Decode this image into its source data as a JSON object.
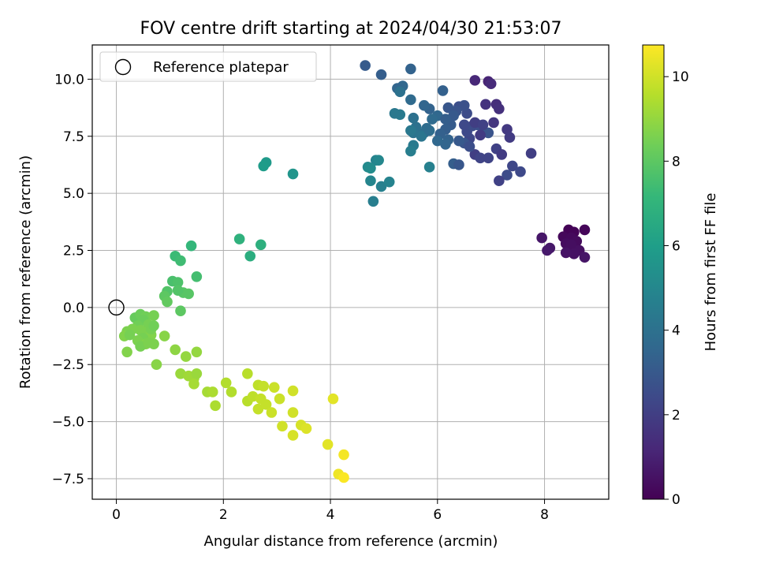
{
  "chart_data": {
    "type": "scatter",
    "title": "FOV centre drift starting at 2024/04/30 21:53:07",
    "xlabel": "Angular distance from reference (arcmin)",
    "ylabel": "Rotation from reference (arcmin)",
    "xlim": [
      -0.45,
      9.2
    ],
    "ylim": [
      -8.4,
      11.5
    ],
    "xticks": [
      0,
      2,
      4,
      6,
      8
    ],
    "xtick_labels": [
      "0",
      "2",
      "4",
      "6",
      "8"
    ],
    "yticks": [
      -7.5,
      -5.0,
      -2.5,
      0.0,
      2.5,
      5.0,
      7.5,
      10.0
    ],
    "ytick_labels": [
      "−7.5",
      "−5.0",
      "−2.5",
      "0.0",
      "2.5",
      "5.0",
      "7.5",
      "10.0"
    ],
    "grid": true,
    "legend": {
      "position": "top-left",
      "entries": [
        "Reference platepar"
      ]
    },
    "reference_point": {
      "x": 0,
      "y": 0,
      "label": "Reference platepar"
    },
    "colorbar": {
      "label": "Hours from first FF file",
      "min": 0,
      "max": 10.75,
      "ticks": [
        0,
        2,
        4,
        6,
        8,
        10
      ],
      "tick_labels": [
        "0",
        "2",
        "4",
        "6",
        "8",
        "10"
      ],
      "colormap": "viridis",
      "stops": [
        "#440154",
        "#482878",
        "#3e4989",
        "#31688e",
        "#26828e",
        "#1f9e89",
        "#35b779",
        "#6ece58",
        "#b5de2b",
        "#fde725"
      ]
    },
    "series": [
      {
        "values": [
          {
            "x": 8.45,
            "y": 3.4,
            "c": 0.05
          },
          {
            "x": 8.55,
            "y": 3.3,
            "c": 0.1
          },
          {
            "x": 8.75,
            "y": 3.4,
            "c": 0.15
          },
          {
            "x": 8.35,
            "y": 3.1,
            "c": 0.2
          },
          {
            "x": 8.5,
            "y": 3.05,
            "c": 0.25
          },
          {
            "x": 8.6,
            "y": 2.9,
            "c": 0.3
          },
          {
            "x": 8.4,
            "y": 2.8,
            "c": 0.35
          },
          {
            "x": 8.5,
            "y": 2.75,
            "c": 0.4
          },
          {
            "x": 8.65,
            "y": 2.5,
            "c": 0.45
          },
          {
            "x": 8.55,
            "y": 2.35,
            "c": 0.5
          },
          {
            "x": 8.4,
            "y": 2.4,
            "c": 0.55
          },
          {
            "x": 8.75,
            "y": 2.2,
            "c": 0.6
          },
          {
            "x": 7.95,
            "y": 3.05,
            "c": 0.65
          },
          {
            "x": 8.1,
            "y": 2.6,
            "c": 0.7
          },
          {
            "x": 8.05,
            "y": 2.5,
            "c": 0.75
          },
          {
            "x": 6.95,
            "y": 9.9,
            "c": 1.1
          },
          {
            "x": 6.7,
            "y": 9.95,
            "c": 1.2
          },
          {
            "x": 7.0,
            "y": 9.8,
            "c": 1.3
          },
          {
            "x": 7.1,
            "y": 8.9,
            "c": 1.4
          },
          {
            "x": 7.15,
            "y": 8.7,
            "c": 1.5
          },
          {
            "x": 6.9,
            "y": 8.9,
            "c": 1.6
          },
          {
            "x": 7.05,
            "y": 8.1,
            "c": 1.7
          },
          {
            "x": 7.3,
            "y": 7.8,
            "c": 1.8
          },
          {
            "x": 7.35,
            "y": 7.45,
            "c": 1.9
          },
          {
            "x": 7.75,
            "y": 6.75,
            "c": 2.0
          },
          {
            "x": 7.1,
            "y": 6.95,
            "c": 2.1
          },
          {
            "x": 7.2,
            "y": 6.7,
            "c": 1.9
          },
          {
            "x": 6.95,
            "y": 6.55,
            "c": 2.2
          },
          {
            "x": 7.4,
            "y": 6.2,
            "c": 2.3
          },
          {
            "x": 7.55,
            "y": 5.95,
            "c": 2.4
          },
          {
            "x": 7.3,
            "y": 5.8,
            "c": 2.5
          },
          {
            "x": 7.15,
            "y": 5.55,
            "c": 2.1
          },
          {
            "x": 6.7,
            "y": 6.7,
            "c": 2.0
          },
          {
            "x": 6.8,
            "y": 6.55,
            "c": 2.2
          },
          {
            "x": 6.6,
            "y": 7.4,
            "c": 2.3
          },
          {
            "x": 6.55,
            "y": 7.7,
            "c": 2.4
          },
          {
            "x": 6.65,
            "y": 7.95,
            "c": 2.5
          },
          {
            "x": 6.75,
            "y": 8.0,
            "c": 2.6
          },
          {
            "x": 6.85,
            "y": 7.7,
            "c": 2.7
          },
          {
            "x": 6.95,
            "y": 7.65,
            "c": 2.8
          },
          {
            "x": 6.8,
            "y": 7.55,
            "c": 1.9
          },
          {
            "x": 6.7,
            "y": 8.1,
            "c": 2.0
          },
          {
            "x": 6.85,
            "y": 8.0,
            "c": 2.1
          },
          {
            "x": 6.5,
            "y": 8.0,
            "c": 2.4
          },
          {
            "x": 6.55,
            "y": 8.5,
            "c": 2.5
          },
          {
            "x": 6.4,
            "y": 8.8,
            "c": 2.6
          },
          {
            "x": 6.5,
            "y": 8.85,
            "c": 2.7
          },
          {
            "x": 6.35,
            "y": 8.6,
            "c": 2.8
          },
          {
            "x": 6.2,
            "y": 8.75,
            "c": 2.9
          },
          {
            "x": 6.3,
            "y": 8.4,
            "c": 3.0
          },
          {
            "x": 6.25,
            "y": 8.0,
            "c": 3.1
          },
          {
            "x": 6.15,
            "y": 7.8,
            "c": 3.2
          },
          {
            "x": 6.05,
            "y": 7.6,
            "c": 3.3
          },
          {
            "x": 6.2,
            "y": 7.35,
            "c": 3.4
          },
          {
            "x": 6.15,
            "y": 7.15,
            "c": 3.5
          },
          {
            "x": 6.0,
            "y": 7.3,
            "c": 3.6
          },
          {
            "x": 6.5,
            "y": 7.2,
            "c": 2.8
          },
          {
            "x": 6.6,
            "y": 7.05,
            "c": 2.6
          },
          {
            "x": 6.4,
            "y": 7.3,
            "c": 3.0
          },
          {
            "x": 6.3,
            "y": 6.3,
            "c": 3.2
          },
          {
            "x": 6.4,
            "y": 6.25,
            "c": 2.9
          },
          {
            "x": 6.1,
            "y": 9.5,
            "c": 3.3
          },
          {
            "x": 5.85,
            "y": 8.7,
            "c": 3.4
          },
          {
            "x": 5.75,
            "y": 8.85,
            "c": 3.5
          },
          {
            "x": 6.0,
            "y": 8.4,
            "c": 3.6
          },
          {
            "x": 6.15,
            "y": 8.25,
            "c": 3.2
          },
          {
            "x": 5.9,
            "y": 8.25,
            "c": 3.7
          },
          {
            "x": 5.8,
            "y": 7.85,
            "c": 3.8
          },
          {
            "x": 5.75,
            "y": 7.65,
            "c": 3.9
          },
          {
            "x": 5.6,
            "y": 7.9,
            "c": 4.0
          },
          {
            "x": 5.55,
            "y": 7.65,
            "c": 4.1
          },
          {
            "x": 5.7,
            "y": 7.5,
            "c": 4.2
          },
          {
            "x": 5.85,
            "y": 7.75,
            "c": 3.8
          },
          {
            "x": 5.5,
            "y": 7.75,
            "c": 4.3
          },
          {
            "x": 5.55,
            "y": 8.3,
            "c": 4.0
          },
          {
            "x": 5.5,
            "y": 9.1,
            "c": 3.7
          },
          {
            "x": 5.35,
            "y": 9.7,
            "c": 3.6
          },
          {
            "x": 5.25,
            "y": 9.6,
            "c": 3.5
          },
          {
            "x": 5.3,
            "y": 9.45,
            "c": 4.0
          },
          {
            "x": 5.5,
            "y": 10.45,
            "c": 3.4
          },
          {
            "x": 4.95,
            "y": 10.2,
            "c": 3.2
          },
          {
            "x": 4.65,
            "y": 10.6,
            "c": 3.1
          },
          {
            "x": 5.55,
            "y": 7.1,
            "c": 4.4
          },
          {
            "x": 5.5,
            "y": 6.85,
            "c": 4.6
          },
          {
            "x": 5.85,
            "y": 6.15,
            "c": 4.7
          },
          {
            "x": 5.3,
            "y": 8.45,
            "c": 4.4
          },
          {
            "x": 5.2,
            "y": 8.5,
            "c": 4.3
          },
          {
            "x": 4.85,
            "y": 6.45,
            "c": 4.8
          },
          {
            "x": 4.9,
            "y": 6.45,
            "c": 5.0
          },
          {
            "x": 4.7,
            "y": 6.15,
            "c": 5.1
          },
          {
            "x": 4.75,
            "y": 6.1,
            "c": 5.2
          },
          {
            "x": 4.75,
            "y": 5.55,
            "c": 4.9
          },
          {
            "x": 4.95,
            "y": 5.3,
            "c": 4.7
          },
          {
            "x": 5.1,
            "y": 5.5,
            "c": 4.8
          },
          {
            "x": 4.8,
            "y": 4.65,
            "c": 4.6
          },
          {
            "x": 2.8,
            "y": 6.35,
            "c": 5.8
          },
          {
            "x": 2.75,
            "y": 6.2,
            "c": 5.9
          },
          {
            "x": 3.3,
            "y": 5.85,
            "c": 5.6
          },
          {
            "x": 2.3,
            "y": 3.0,
            "c": 6.9
          },
          {
            "x": 2.7,
            "y": 2.75,
            "c": 6.8
          },
          {
            "x": 2.5,
            "y": 2.25,
            "c": 6.7
          },
          {
            "x": 1.4,
            "y": 2.7,
            "c": 7.1
          },
          {
            "x": 1.1,
            "y": 2.25,
            "c": 7.3
          },
          {
            "x": 1.2,
            "y": 2.05,
            "c": 7.4
          },
          {
            "x": 1.5,
            "y": 1.35,
            "c": 7.5
          },
          {
            "x": 1.05,
            "y": 1.15,
            "c": 7.6
          },
          {
            "x": 1.15,
            "y": 1.1,
            "c": 7.7
          },
          {
            "x": 0.95,
            "y": 0.7,
            "c": 7.8
          },
          {
            "x": 1.25,
            "y": 0.65,
            "c": 7.9
          },
          {
            "x": 1.35,
            "y": 0.6,
            "c": 7.9
          },
          {
            "x": 0.9,
            "y": 0.5,
            "c": 8.0
          },
          {
            "x": 0.95,
            "y": 0.25,
            "c": 8.1
          },
          {
            "x": 1.2,
            "y": -0.15,
            "c": 8.0
          },
          {
            "x": 1.15,
            "y": 0.75,
            "c": 7.8
          },
          {
            "x": 0.35,
            "y": -0.45,
            "c": 8.2
          },
          {
            "x": 0.45,
            "y": -0.3,
            "c": 8.3
          },
          {
            "x": 0.55,
            "y": -0.4,
            "c": 8.4
          },
          {
            "x": 0.7,
            "y": -0.35,
            "c": 8.5
          },
          {
            "x": 0.5,
            "y": -0.55,
            "c": 8.3
          },
          {
            "x": 0.6,
            "y": -0.75,
            "c": 8.5
          },
          {
            "x": 0.4,
            "y": -0.8,
            "c": 8.4
          },
          {
            "x": 0.3,
            "y": -0.95,
            "c": 8.6
          },
          {
            "x": 0.2,
            "y": -1.05,
            "c": 8.6
          },
          {
            "x": 0.15,
            "y": -1.25,
            "c": 8.7
          },
          {
            "x": 0.25,
            "y": -1.2,
            "c": 8.5
          },
          {
            "x": 0.45,
            "y": -1.0,
            "c": 8.6
          },
          {
            "x": 0.55,
            "y": -1.1,
            "c": 8.6
          },
          {
            "x": 0.65,
            "y": -1.2,
            "c": 8.7
          },
          {
            "x": 0.5,
            "y": -1.35,
            "c": 8.5
          },
          {
            "x": 0.4,
            "y": -1.45,
            "c": 8.6
          },
          {
            "x": 0.55,
            "y": -1.6,
            "c": 8.7
          },
          {
            "x": 0.7,
            "y": -1.6,
            "c": 8.6
          },
          {
            "x": 0.45,
            "y": -1.7,
            "c": 8.5
          },
          {
            "x": 0.6,
            "y": -1.55,
            "c": 8.6
          },
          {
            "x": 0.65,
            "y": -0.95,
            "c": 8.5
          },
          {
            "x": 0.7,
            "y": -0.8,
            "c": 8.4
          },
          {
            "x": 0.2,
            "y": -1.95,
            "c": 8.7
          },
          {
            "x": 0.75,
            "y": -2.5,
            "c": 8.8
          },
          {
            "x": 0.9,
            "y": -1.25,
            "c": 8.8
          },
          {
            "x": 1.1,
            "y": -1.85,
            "c": 8.9
          },
          {
            "x": 1.3,
            "y": -2.15,
            "c": 9.0
          },
          {
            "x": 1.5,
            "y": -1.95,
            "c": 9.0
          },
          {
            "x": 1.2,
            "y": -2.9,
            "c": 9.1
          },
          {
            "x": 1.35,
            "y": -3.0,
            "c": 9.2
          },
          {
            "x": 1.45,
            "y": -3.1,
            "c": 9.2
          },
          {
            "x": 1.45,
            "y": -3.35,
            "c": 9.3
          },
          {
            "x": 1.5,
            "y": -2.9,
            "c": 9.1
          },
          {
            "x": 1.7,
            "y": -3.7,
            "c": 9.3
          },
          {
            "x": 1.8,
            "y": -3.7,
            "c": 9.4
          },
          {
            "x": 1.85,
            "y": -4.3,
            "c": 9.4
          },
          {
            "x": 2.05,
            "y": -3.3,
            "c": 9.5
          },
          {
            "x": 2.15,
            "y": -3.7,
            "c": 9.5
          },
          {
            "x": 2.45,
            "y": -2.9,
            "c": 9.6
          },
          {
            "x": 2.45,
            "y": -4.1,
            "c": 9.6
          },
          {
            "x": 2.55,
            "y": -3.9,
            "c": 9.7
          },
          {
            "x": 2.65,
            "y": -3.4,
            "c": 9.7
          },
          {
            "x": 2.7,
            "y": -4.0,
            "c": 9.8
          },
          {
            "x": 2.75,
            "y": -3.45,
            "c": 9.8
          },
          {
            "x": 2.65,
            "y": -4.45,
            "c": 9.8
          },
          {
            "x": 2.8,
            "y": -4.25,
            "c": 9.8
          },
          {
            "x": 2.9,
            "y": -4.6,
            "c": 9.9
          },
          {
            "x": 2.95,
            "y": -3.5,
            "c": 9.9
          },
          {
            "x": 3.05,
            "y": -4.0,
            "c": 9.9
          },
          {
            "x": 3.1,
            "y": -5.2,
            "c": 10.0
          },
          {
            "x": 3.3,
            "y": -3.65,
            "c": 10.0
          },
          {
            "x": 3.3,
            "y": -4.6,
            "c": 10.0
          },
          {
            "x": 3.3,
            "y": -5.6,
            "c": 10.1
          },
          {
            "x": 3.45,
            "y": -5.15,
            "c": 10.1
          },
          {
            "x": 3.55,
            "y": -5.3,
            "c": 10.2
          },
          {
            "x": 3.95,
            "y": -6.0,
            "c": 10.3
          },
          {
            "x": 4.05,
            "y": -4.0,
            "c": 10.3
          },
          {
            "x": 4.15,
            "y": -7.3,
            "c": 10.5
          },
          {
            "x": 4.25,
            "y": -6.45,
            "c": 10.6
          },
          {
            "x": 4.25,
            "y": -7.45,
            "c": 10.7
          }
        ]
      }
    ]
  }
}
